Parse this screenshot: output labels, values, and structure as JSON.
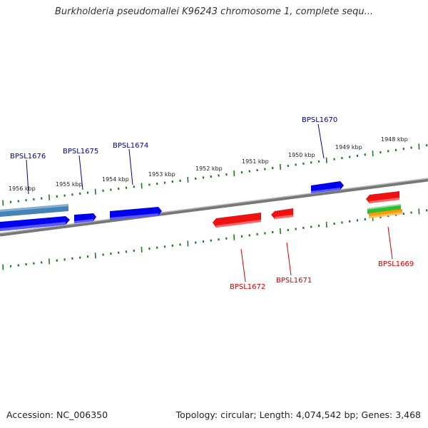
{
  "header": {
    "title": "Burkholderia pseudomallei K96243 chromosome 1, complete sequ..."
  },
  "footer": {
    "accession": "Accession: NC_006350",
    "summary": "Topology: circular; Length: 4,074,542 bp; Genes: 3,468"
  },
  "colors": {
    "forward_gene": "#0000ee",
    "reverse_gene": "#ee1111",
    "forward_label": "#00008b",
    "reverse_label": "#cc0000",
    "backbone": "#777777",
    "ruler_tick": "#1f7a1f",
    "highlight_forward": "#4682b4",
    "feature_green": "#33bb33",
    "feature_orange": "#ff9900"
  },
  "ruler": {
    "labels": [
      "1956 kbp",
      "1955 kbp",
      "1954 kbp",
      "1953 kbp",
      "1952 kbp",
      "1951 kbp",
      "1950 kbp",
      "1949 kbp",
      "1948 kbp"
    ]
  },
  "genes": {
    "forward": [
      {
        "label": "BPSL1676",
        "icon": "arrow-right"
      },
      {
        "label": "BPSL1675",
        "icon": "arrow-right"
      },
      {
        "label": "BPSL1674",
        "icon": "arrow-right"
      },
      {
        "label": "BPSL1670",
        "icon": "arrow-right"
      }
    ],
    "reverse": [
      {
        "label": "BPSL1672",
        "icon": "arrow-left"
      },
      {
        "label": "BPSL1671",
        "icon": "arrow-left"
      },
      {
        "label": "BPSL1669",
        "icon": "arrow-left"
      }
    ]
  }
}
